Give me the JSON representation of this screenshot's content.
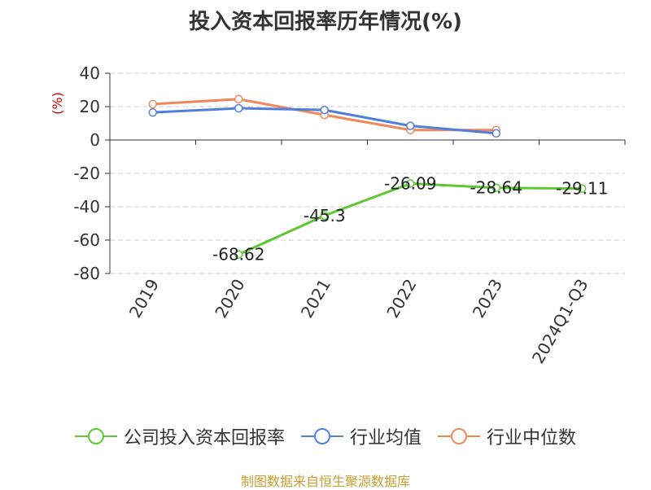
{
  "chart_data": {
    "type": "line",
    "title": "投入资本回报率历年情况(%)",
    "ylabel": "(%)",
    "categories": [
      "2019",
      "2020",
      "2021",
      "2022",
      "2023",
      "2024Q1-Q3"
    ],
    "ylim": [
      -80,
      40
    ],
    "yticks": [
      40,
      20,
      0,
      -20,
      -40,
      -60,
      -80
    ],
    "grid": true,
    "legend_position": "bottom",
    "series": [
      {
        "name": "公司投入资本回报率",
        "color": "#5dc832",
        "values": [
          null,
          -68.62,
          -45.3,
          -26.09,
          -28.64,
          -29.11
        ],
        "labels": [
          "",
          "-68.62",
          "-45.3",
          "-26.09",
          "-28.64",
          "-29.11"
        ]
      },
      {
        "name": "行业均值",
        "color": "#4f7fdc",
        "values": [
          16.5,
          19,
          18,
          8.5,
          4,
          null
        ]
      },
      {
        "name": "行业中位数",
        "color": "#f0885a",
        "values": [
          21.5,
          24.5,
          15,
          6,
          6,
          null
        ]
      }
    ]
  },
  "source": "制图数据来自恒生聚源数据库"
}
